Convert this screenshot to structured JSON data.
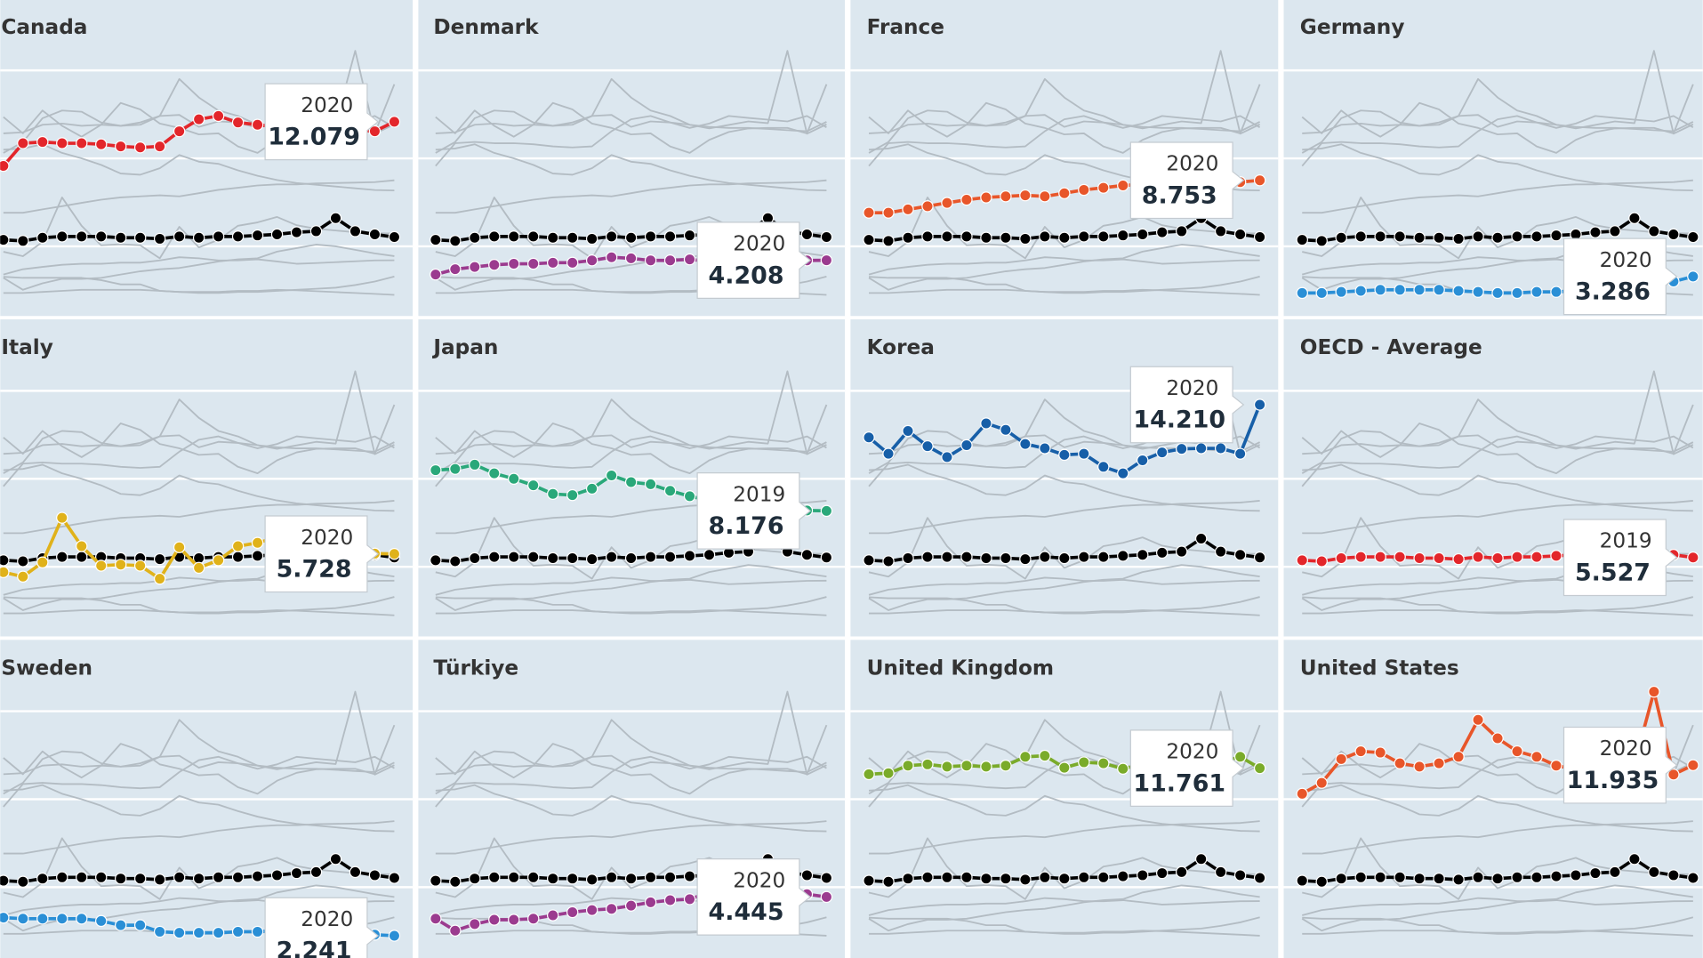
{
  "chart_data": {
    "type": "line",
    "ylim": [
      1,
      19
    ],
    "yticks": [
      5,
      10,
      15
    ],
    "grid": true,
    "grey_color": "#b3bcc3",
    "reference_color": "#000000",
    "reference_series": 7,
    "series": [
      {
        "name": "Canada",
        "color": "#e3262b",
        "values": [
          9.57,
          10.86,
          10.93,
          10.86,
          10.86,
          10.8,
          10.68,
          10.62,
          10.68,
          11.54,
          12.22,
          12.41,
          12.04,
          11.91,
          11.79,
          11.73,
          11.73,
          11.67,
          11.6,
          11.54,
          12.079
        ],
        "tooltip_year": "2020",
        "tooltip_label": "12.079"
      },
      {
        "name": "Denmark",
        "color": "#9b3b8f",
        "values": [
          3.4,
          3.7,
          3.83,
          3.95,
          4.01,
          4.01,
          4.07,
          4.07,
          4.2,
          4.38,
          4.32,
          4.2,
          4.2,
          4.26,
          4.14,
          4.01,
          4.05,
          4.1,
          4.15,
          4.2,
          4.208
        ],
        "tooltip_year": "2020",
        "tooltip_label": "4.208"
      },
      {
        "name": "France",
        "color": "#e8562a",
        "values": [
          6.91,
          6.91,
          7.1,
          7.28,
          7.47,
          7.65,
          7.78,
          7.84,
          7.9,
          7.84,
          8.02,
          8.21,
          8.33,
          8.46,
          8.52,
          8.52,
          8.58,
          8.6,
          8.62,
          8.65,
          8.753
        ],
        "tooltip_year": "2020",
        "tooltip_label": "8.753"
      },
      {
        "name": "Germany",
        "color": "#2a8fd6",
        "values": [
          2.35,
          2.35,
          2.41,
          2.47,
          2.53,
          2.53,
          2.53,
          2.53,
          2.47,
          2.41,
          2.35,
          2.35,
          2.41,
          2.41,
          2.47,
          2.53,
          2.59,
          2.65,
          2.8,
          3.0,
          3.286
        ],
        "tooltip_year": "2020",
        "tooltip_label": "3.286"
      },
      {
        "name": "Italy",
        "color": "#e0b21a",
        "values": [
          4.69,
          4.44,
          5.25,
          7.78,
          6.17,
          5.06,
          5.12,
          5.06,
          4.32,
          6.11,
          4.94,
          5.37,
          6.17,
          6.36,
          6.67,
          6.2,
          6.0,
          5.9,
          5.8,
          5.75,
          5.728
        ],
        "tooltip_year": "2020",
        "tooltip_label": "5.728"
      },
      {
        "name": "Japan",
        "color": "#2aa87a",
        "values": [
          10.49,
          10.56,
          10.8,
          10.31,
          10.0,
          9.63,
          9.14,
          9.07,
          9.44,
          10.19,
          9.81,
          9.69,
          9.32,
          9.01,
          8.77,
          8.6,
          8.5,
          8.4,
          8.3,
          8.2,
          8.176
        ],
        "tooltip_year": "2019",
        "tooltip_label": "8.176"
      },
      {
        "name": "Korea",
        "color": "#175fa8",
        "values": [
          12.35,
          11.42,
          12.72,
          11.85,
          11.23,
          11.91,
          13.15,
          12.78,
          11.98,
          11.73,
          11.36,
          11.42,
          10.68,
          10.31,
          11.05,
          11.5,
          11.7,
          11.73,
          11.73,
          11.42,
          14.21
        ],
        "tooltip_year": "2020",
        "tooltip_label": "14.210"
      },
      {
        "name": "OECD - Average",
        "color": "#e3262b",
        "values": [
          5.37,
          5.31,
          5.49,
          5.56,
          5.56,
          5.56,
          5.49,
          5.49,
          5.43,
          5.56,
          5.49,
          5.56,
          5.56,
          5.62,
          5.68,
          5.8,
          5.86,
          6.6,
          5.86,
          5.68,
          5.527
        ],
        "tooltip_year": "2019",
        "tooltip_label": "5.527"
      },
      {
        "name": "Sweden",
        "color": "#2a8fd6",
        "values": [
          3.27,
          3.21,
          3.21,
          3.21,
          3.21,
          3.08,
          2.84,
          2.84,
          2.47,
          2.41,
          2.41,
          2.41,
          2.47,
          2.47,
          2.53,
          2.5,
          2.45,
          2.4,
          2.35,
          2.3,
          2.241
        ],
        "tooltip_year": "2020",
        "tooltip_label": "2.241"
      },
      {
        "name": "Türkiye",
        "color": "#9b3b8f",
        "values": [
          3.21,
          2.53,
          2.9,
          3.15,
          3.15,
          3.21,
          3.4,
          3.58,
          3.7,
          3.77,
          3.95,
          4.14,
          4.26,
          4.32,
          4.7,
          4.9,
          5.1,
          5.0,
          4.8,
          4.6,
          4.445
        ],
        "tooltip_year": "2020",
        "tooltip_label": "4.445"
      },
      {
        "name": "United Kingdom",
        "color": "#7aab2a",
        "values": [
          11.42,
          11.48,
          11.91,
          11.98,
          11.85,
          11.91,
          11.85,
          11.91,
          12.41,
          12.47,
          11.79,
          12.1,
          12.04,
          11.73,
          11.98,
          12.41,
          12.3,
          12.2,
          12.1,
          12.41,
          11.761
        ],
        "tooltip_year": "2020",
        "tooltip_label": "11.761"
      },
      {
        "name": "United States",
        "color": "#e8562a",
        "values": [
          10.31,
          10.93,
          12.28,
          12.72,
          12.65,
          12.04,
          11.85,
          12.04,
          12.41,
          14.51,
          13.46,
          12.72,
          12.41,
          11.91,
          11.7,
          11.9,
          12.1,
          12.0,
          16.11,
          11.4,
          11.935
        ],
        "tooltip_year": "2020",
        "tooltip_label": "11.935"
      }
    ]
  }
}
